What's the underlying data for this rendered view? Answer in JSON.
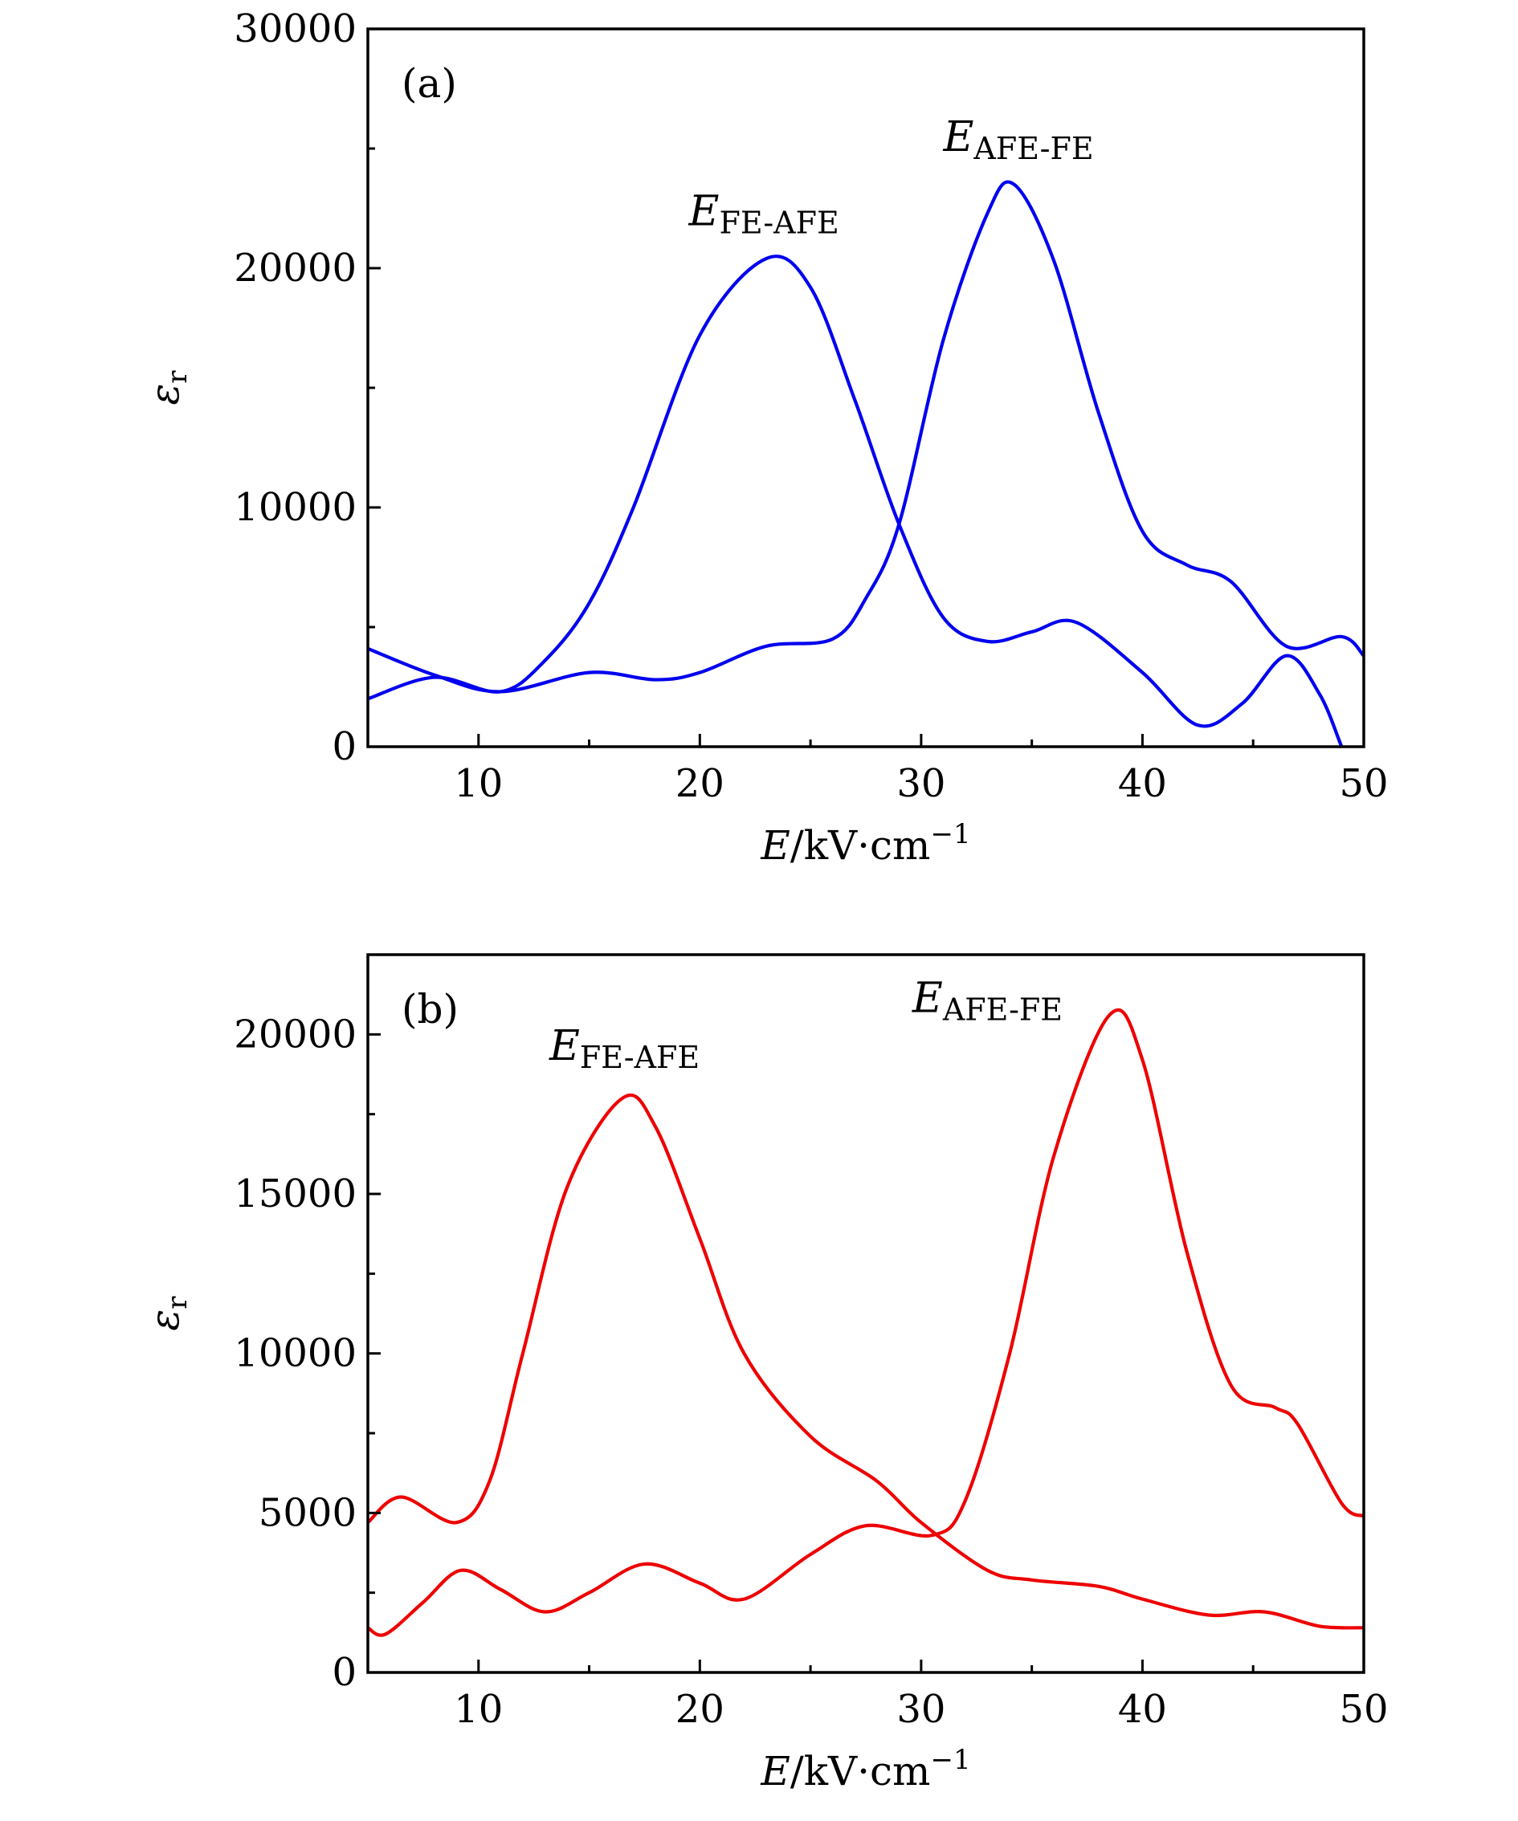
{
  "chart_data": [
    {
      "type": "line",
      "panel_label": "(a)",
      "xlabel": {
        "italic": "E",
        "rest": "/kV·cm",
        "sup": "−1"
      },
      "ylabel": {
        "main": "ε",
        "sub": "r"
      },
      "xlim": [
        5,
        50
      ],
      "ylim": [
        0,
        30000
      ],
      "xticks": [
        10,
        20,
        30,
        40,
        50
      ],
      "yticks": [
        0,
        10000,
        20000,
        30000
      ],
      "x_minor_step": 5,
      "y_minor_step": 5000,
      "grid": false,
      "color": "#0000ee",
      "annotations": [
        {
          "main": "E",
          "sub": "FE-AFE",
          "x": 19.5,
          "y": 21800
        },
        {
          "main": "E",
          "sub": "AFE-FE",
          "x": 31.0,
          "y": 24900
        }
      ],
      "series": [
        {
          "x": [
            5,
            8,
            11,
            13,
            15,
            17,
            20,
            23,
            25,
            27,
            29,
            31,
            33,
            35,
            37,
            40,
            42.5,
            44.5,
            46.5,
            48,
            49,
            49.3
          ],
          "y": [
            2000,
            2900,
            2300,
            3600,
            6000,
            10000,
            17200,
            20400,
            19200,
            14500,
            9300,
            5400,
            4400,
            4800,
            5200,
            3100,
            900,
            1800,
            3800,
            2200,
            0,
            -600
          ]
        },
        {
          "x": [
            5,
            8,
            11,
            15,
            18,
            20,
            23,
            26,
            27.5,
            29,
            31,
            33,
            34.2,
            36,
            38,
            40,
            42,
            44,
            46.5,
            49,
            50
          ],
          "y": [
            4100,
            3000,
            2300,
            3100,
            2800,
            3100,
            4200,
            4500,
            6200,
            9300,
            17000,
            22300,
            23500,
            20300,
            14000,
            9000,
            7600,
            6900,
            4200,
            4600,
            3800
          ]
        }
      ]
    },
    {
      "type": "line",
      "panel_label": "(b)",
      "xlabel": {
        "italic": "E",
        "rest": "/kV·cm",
        "sup": "−1"
      },
      "ylabel": {
        "main": "ε",
        "sub": "r"
      },
      "xlim": [
        5,
        50
      ],
      "ylim": [
        0,
        22500
      ],
      "xticks": [
        10,
        20,
        30,
        40,
        50
      ],
      "yticks": [
        0,
        5000,
        10000,
        15000,
        20000
      ],
      "x_minor_step": 5,
      "y_minor_step": 2500,
      "grid": false,
      "color": "#ee0000",
      "annotations": [
        {
          "main": "E",
          "sub": "FE-AFE",
          "x": 13.2,
          "y": 19200
        },
        {
          "main": "E",
          "sub": "AFE-FE",
          "x": 29.6,
          "y": 20700
        }
      ],
      "series": [
        {
          "x": [
            5,
            6.5,
            9,
            10.5,
            12,
            14,
            16.5,
            18,
            20,
            22,
            25,
            28,
            30,
            33,
            35,
            38,
            40,
            43,
            45.5,
            48,
            50
          ],
          "y": [
            4700,
            5500,
            4700,
            6000,
            10000,
            15200,
            18000,
            17100,
            13600,
            10000,
            7400,
            6000,
            4700,
            3200,
            2900,
            2700,
            2300,
            1800,
            1900,
            1450,
            1400
          ]
        },
        {
          "x": [
            5,
            5.8,
            7.5,
            9.2,
            11,
            13,
            15,
            17.5,
            20,
            22,
            25,
            27.5,
            30.5,
            32,
            34,
            36,
            38.5,
            40,
            42,
            44,
            46,
            47,
            49,
            50
          ],
          "y": [
            1400,
            1200,
            2200,
            3200,
            2600,
            1900,
            2500,
            3400,
            2800,
            2300,
            3700,
            4600,
            4300,
            5400,
            10000,
            16200,
            20600,
            19200,
            13200,
            9000,
            8300,
            7800,
            5300,
            4900
          ]
        }
      ]
    }
  ]
}
